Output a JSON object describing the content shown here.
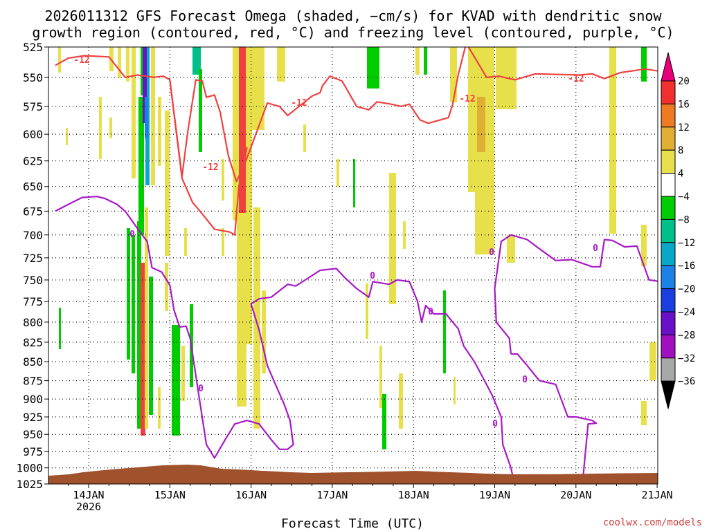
{
  "chart_data": {
    "type": "heatmap",
    "title_line1": "2026011312 GFS Forecast Omega (shaded, −cm/s) for KVAD with dendritic snow",
    "title_line2": "growth region (contoured, red, °C) and freezing level (contoured, purple, °C)",
    "xlabel": "Forecast Time (UTC)",
    "credit": "coolwx.com/models",
    "y_scale": "log-pressure (hPa)",
    "y_ticks": [
      "525",
      "550",
      "575",
      "600",
      "625",
      "650",
      "675",
      "700",
      "725",
      "750",
      "775",
      "800",
      "825",
      "850",
      "875",
      "900",
      "925",
      "950",
      "975",
      "1000",
      "1025"
    ],
    "x_ticks": [
      "14JAN",
      "15JAN",
      "16JAN",
      "17JAN",
      "18JAN",
      "19JAN",
      "20JAN",
      "21JAN"
    ],
    "x_year_label": "2026",
    "colorbar": {
      "labels": [
        "20",
        "16",
        "12",
        "8",
        "4",
        "−4",
        "−8",
        "−12",
        "−16",
        "−20",
        "−24",
        "−28",
        "−32",
        "−36"
      ],
      "colors": [
        "#e8007a",
        "#f0302e",
        "#ee7a22",
        "#e0ae32",
        "#e8e04a",
        "#ffffff",
        "#00cc00",
        "#00c08a",
        "#0aa8c8",
        "#1d82e8",
        "#1a3ee0",
        "#6a10c8",
        "#a010c0",
        "#a8a8a8",
        "#000000"
      ]
    },
    "contour_labels": {
      "red": "-12",
      "purple": "0"
    },
    "series": [
      {
        "name": "dendritic -12",
        "color": "#f04040",
        "points": [
          [
            -0.41,
            540
          ],
          [
            -0.25,
            534
          ],
          [
            -0.05,
            532
          ],
          [
            0.25,
            533
          ],
          [
            0.45,
            550
          ],
          [
            0.6,
            548
          ],
          [
            0.8,
            550
          ],
          [
            0.92,
            549
          ],
          [
            1.0,
            552
          ],
          [
            1.15,
            640
          ],
          [
            1.22,
            598
          ],
          [
            1.32,
            552
          ],
          [
            1.4,
            553
          ],
          [
            1.45,
            567
          ],
          [
            1.55,
            565
          ],
          [
            1.62,
            580
          ],
          [
            1.72,
            620
          ],
          [
            1.82,
            645
          ],
          [
            1.9,
            632
          ],
          [
            2.0,
            612
          ],
          [
            2.2,
            572
          ],
          [
            2.35,
            575
          ],
          [
            2.45,
            583
          ],
          [
            2.75,
            566
          ],
          [
            2.85,
            563
          ],
          [
            2.88,
            557
          ],
          [
            2.97,
            549
          ],
          [
            3.12,
            553
          ],
          [
            3.3,
            575
          ],
          [
            3.45,
            578
          ],
          [
            3.55,
            571
          ],
          [
            3.72,
            573
          ],
          [
            3.85,
            575
          ],
          [
            3.95,
            573
          ],
          [
            4.08,
            587
          ],
          [
            4.18,
            590
          ],
          [
            4.28,
            588
          ],
          [
            4.43,
            585
          ],
          [
            4.48,
            574
          ],
          [
            4.55,
            548
          ],
          [
            4.65,
            522
          ],
          [
            4.9,
            550
          ],
          [
            5.05,
            549
          ],
          [
            5.25,
            552
          ],
          [
            5.5,
            547
          ],
          [
            6.05,
            548
          ],
          [
            6.2,
            547
          ],
          [
            6.35,
            551
          ],
          [
            6.55,
            546
          ],
          [
            6.85,
            543
          ],
          [
            7.05,
            545
          ],
          [
            7.2,
            548
          ],
          [
            7.3,
            545
          ],
          [
            7.45,
            545
          ],
          [
            7.55,
            548
          ],
          [
            7.7,
            551
          ],
          [
            7.85,
            550
          ]
        ]
      },
      {
        "name": "dendritic -12 lower",
        "color": "#f04040",
        "points": [
          [
            1.0,
            552
          ],
          [
            1.15,
            642
          ],
          [
            1.28,
            666
          ],
          [
            1.42,
            680
          ],
          [
            1.55,
            694
          ],
          [
            1.74,
            697
          ],
          [
            1.8,
            700
          ],
          [
            1.85,
            650
          ],
          [
            1.9,
            632
          ],
          [
            1.95,
            612
          ]
        ]
      },
      {
        "name": "freezing 0",
        "color": "#a818c8",
        "points": [
          [
            -0.41,
            675
          ],
          [
            -0.25,
            668
          ],
          [
            -0.08,
            661
          ],
          [
            0.1,
            660
          ],
          [
            0.2,
            662
          ],
          [
            0.35,
            668
          ],
          [
            0.45,
            675
          ],
          [
            0.6,
            693
          ],
          [
            0.72,
            707
          ],
          [
            0.78,
            736
          ],
          [
            0.9,
            741
          ],
          [
            1.0,
            756
          ],
          [
            1.05,
            785
          ],
          [
            1.12,
            806
          ],
          [
            1.2,
            805
          ],
          [
            1.25,
            820
          ],
          [
            1.35,
            890
          ],
          [
            1.45,
            965
          ],
          [
            1.55,
            985
          ],
          [
            1.68,
            958
          ],
          [
            1.8,
            935
          ],
          [
            1.95,
            930
          ],
          [
            2.1,
            935
          ],
          [
            2.25,
            958
          ],
          [
            2.35,
            972
          ],
          [
            2.45,
            972
          ],
          [
            2.52,
            965
          ],
          [
            2.48,
            930
          ],
          [
            2.4,
            905
          ],
          [
            2.3,
            880
          ],
          [
            2.2,
            855
          ],
          [
            2.1,
            810
          ],
          [
            2.0,
            778
          ],
          [
            2.1,
            772
          ],
          [
            2.25,
            770
          ],
          [
            2.45,
            755
          ],
          [
            2.55,
            757
          ],
          [
            2.7,
            748
          ],
          [
            2.85,
            739
          ],
          [
            3.05,
            737
          ],
          [
            3.15,
            747
          ],
          [
            3.3,
            760
          ],
          [
            3.45,
            770
          ],
          [
            3.5,
            752
          ],
          [
            3.7,
            755
          ],
          [
            3.8,
            750
          ],
          [
            3.95,
            752
          ],
          [
            4.05,
            775
          ],
          [
            4.1,
            800
          ],
          [
            4.15,
            780
          ],
          [
            4.25,
            790
          ],
          [
            4.4,
            790
          ],
          [
            4.55,
            808
          ],
          [
            4.62,
            830
          ],
          [
            4.75,
            850
          ],
          [
            4.85,
            870
          ],
          [
            4.97,
            895
          ],
          [
            5.08,
            925
          ],
          [
            5.1,
            965
          ],
          [
            5.2,
            1000
          ],
          [
            5.25,
            1030
          ]
        ]
      },
      {
        "name": "freezing 0 east",
        "color": "#a818c8",
        "points": [
          [
            5.2,
            840
          ],
          [
            5.18,
            820
          ],
          [
            5.1,
            810
          ],
          [
            5.02,
            800
          ],
          [
            5.0,
            760
          ],
          [
            5.08,
            707
          ],
          [
            5.2,
            700
          ],
          [
            5.4,
            705
          ],
          [
            5.55,
            715
          ],
          [
            5.75,
            728
          ],
          [
            5.95,
            727
          ],
          [
            6.2,
            735
          ],
          [
            6.3,
            735
          ],
          [
            6.35,
            705
          ],
          [
            6.45,
            706
          ],
          [
            6.6,
            713
          ],
          [
            6.75,
            712
          ],
          [
            6.9,
            750
          ],
          [
            7.05,
            752
          ],
          [
            7.25,
            765
          ],
          [
            7.35,
            770
          ],
          [
            7.5,
            770
          ],
          [
            7.6,
            777
          ],
          [
            7.85,
            778
          ]
        ]
      },
      {
        "name": "freezing 0 lower",
        "color": "#a818c8",
        "points": [
          [
            5.2,
            840
          ],
          [
            5.28,
            840
          ],
          [
            5.4,
            855
          ],
          [
            5.55,
            875
          ],
          [
            5.75,
            880
          ],
          [
            5.9,
            925
          ],
          [
            6.0,
            925
          ],
          [
            6.2,
            930
          ],
          [
            6.25,
            934
          ],
          [
            6.15,
            935
          ],
          [
            6.08,
            1025
          ]
        ]
      }
    ]
  }
}
